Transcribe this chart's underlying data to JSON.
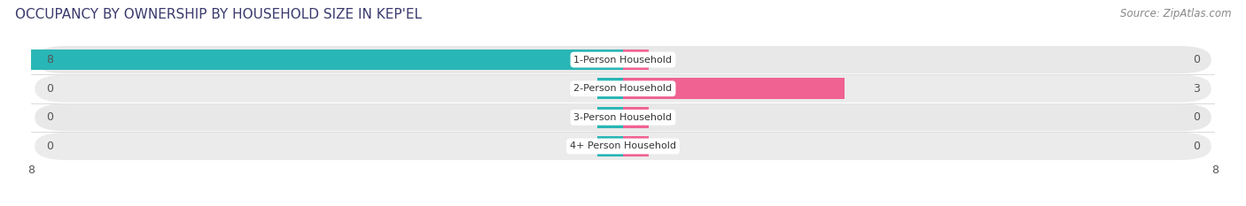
{
  "title": "OCCUPANCY BY OWNERSHIP BY HOUSEHOLD SIZE IN KEP'EL",
  "source": "Source: ZipAtlas.com",
  "categories": [
    "1-Person Household",
    "2-Person Household",
    "3-Person Household",
    "4+ Person Household"
  ],
  "owner_values": [
    8,
    0,
    0,
    0
  ],
  "renter_values": [
    0,
    3,
    0,
    0
  ],
  "owner_color": "#29b6b6",
  "renter_color": "#f06292",
  "row_bg_color_odd": "#e8e8e8",
  "row_bg_color_even": "#ebebeb",
  "xlim_left": -8,
  "xlim_right": 8,
  "max_val": 8,
  "stub_size": 0.35,
  "title_fontsize": 11,
  "source_fontsize": 8.5,
  "label_fontsize": 8,
  "tick_fontsize": 9,
  "figsize": [
    14.06,
    2.33
  ],
  "dpi": 100
}
